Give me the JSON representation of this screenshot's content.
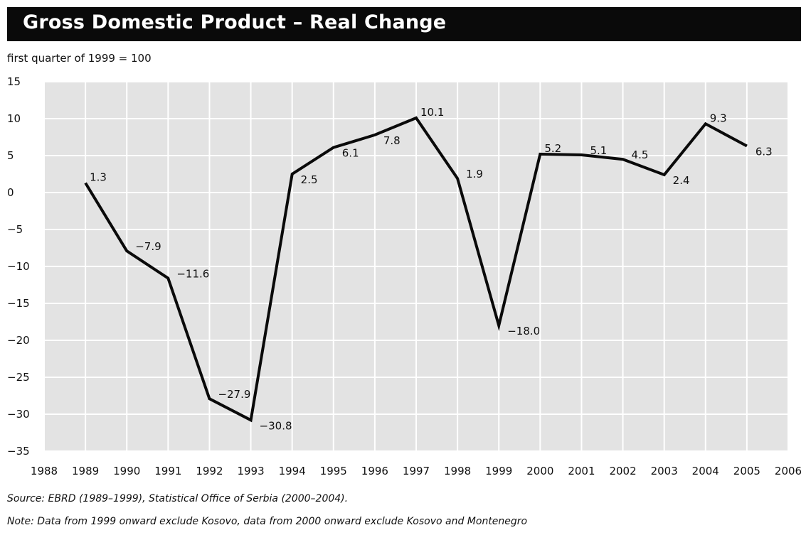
{
  "title": "Gross Domestic Product – Real Change",
  "subtitle": "first quarter of 1999 = 100",
  "source": "Source: EBRD (1989–1999), Statistical Office of Serbia (2000–2004).",
  "note": "Note:   Data from 1999 onward exclude Kosovo, data from 2000 onward exclude Kosovo and Montenegro",
  "colors": {
    "plot_background": "#e3e3e3",
    "grid": "#ffffff",
    "line": "#0a0a0a",
    "title_bar": "#0a0a0a"
  },
  "chart_data": {
    "type": "line",
    "title": "Gross Domestic Product – Real Change",
    "subtitle": "first quarter of 1999 = 100",
    "xlim": [
      1988,
      2006
    ],
    "ylim": [
      -35,
      15
    ],
    "grid": true,
    "x_ticks": [
      "1988",
      "1989",
      "1990",
      "1991",
      "1992",
      "1993",
      "1994",
      "1995",
      "1996",
      "1997",
      "1998",
      "1999",
      "2000",
      "2001",
      "2002",
      "2003",
      "2004",
      "2005",
      "2006"
    ],
    "y_ticks": [
      "15",
      "10",
      "5",
      "0",
      "−5",
      "−10",
      "−15",
      "−20",
      "−25",
      "−30",
      "−35"
    ],
    "series": [
      {
        "x": [
          1989,
          1990,
          1991,
          1992,
          1993,
          1994,
          1995,
          1996,
          1997,
          1998,
          1999,
          2000,
          2001,
          2002,
          2003,
          2004,
          2005
        ],
        "y": [
          1.3,
          -7.9,
          -11.6,
          -27.9,
          -30.8,
          2.5,
          6.1,
          7.8,
          10.1,
          1.9,
          -18.0,
          5.2,
          5.1,
          4.5,
          2.4,
          9.3,
          6.3
        ],
        "labels": [
          "1.3",
          "−7.9",
          "−11.6",
          "−27.9",
          "−30.8",
          "2.5",
          "6.1",
          "7.8",
          "10.1",
          "1.9",
          "−18.0",
          "5.2",
          "5.1",
          "4.5",
          "2.4",
          "9.3",
          "6.3"
        ]
      }
    ]
  }
}
